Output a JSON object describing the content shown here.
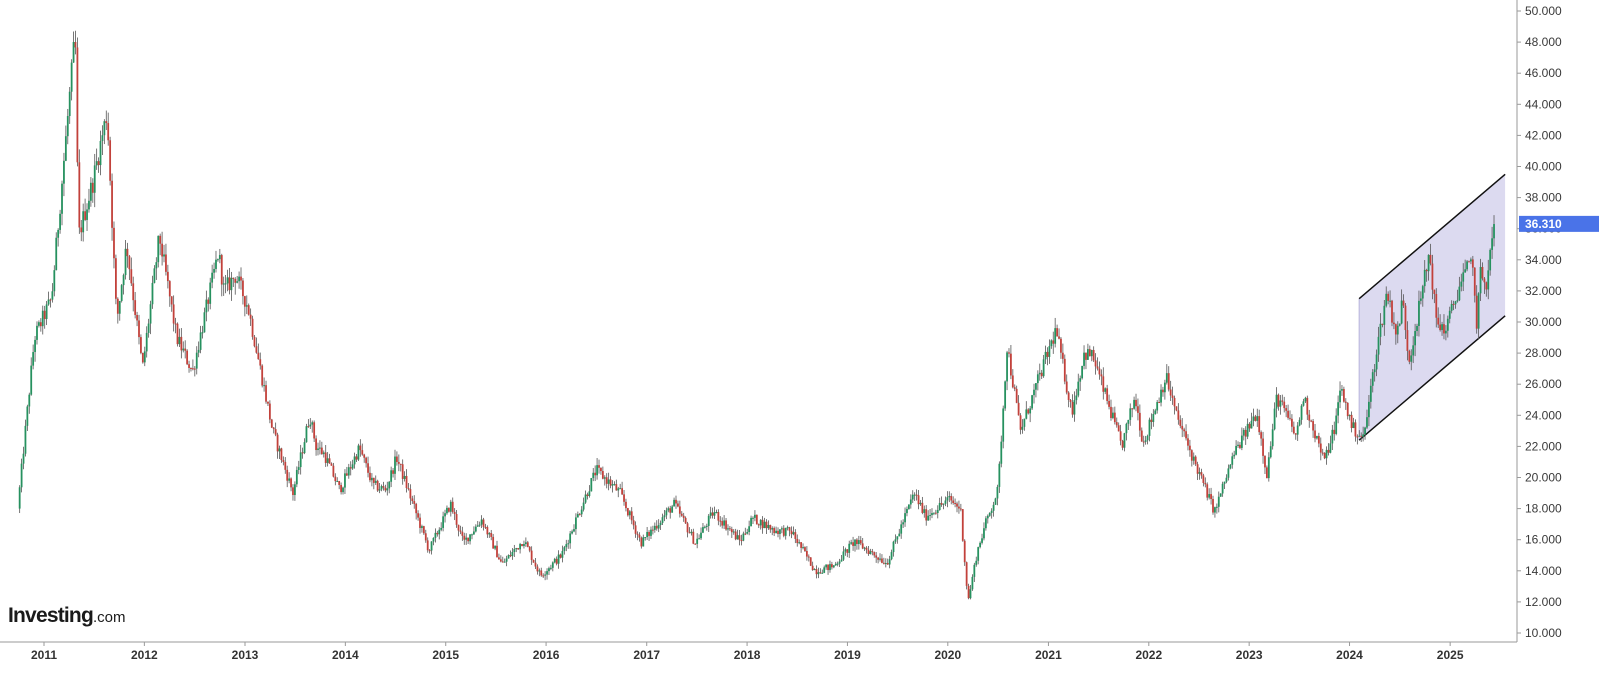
{
  "watermark": {
    "main": "Investing",
    "suffix": ".com"
  },
  "colors": {
    "up": "#26915f",
    "down": "#c2413b",
    "wick": "#555555",
    "channel_fill": "#dcdaf0",
    "channel_line": "#111111",
    "last_price_bg": "#4a73e8"
  },
  "chart_data": {
    "type": "candlestick",
    "interval": "weekly",
    "title": "",
    "xlabel": "",
    "ylabel": "",
    "ylim": [
      10,
      50
    ],
    "y_ticks": [
      "10.000",
      "12.000",
      "14.000",
      "16.000",
      "18.000",
      "20.000",
      "22.000",
      "24.000",
      "26.000",
      "28.000",
      "30.000",
      "32.000",
      "34.000",
      "36.000",
      "38.000",
      "40.000",
      "42.000",
      "44.000",
      "46.000",
      "48.000",
      "50.000"
    ],
    "x_ticks": [
      "2011",
      "2012",
      "2013",
      "2014",
      "2015",
      "2016",
      "2017",
      "2018",
      "2019",
      "2020",
      "2021",
      "2022",
      "2023",
      "2024",
      "2025"
    ],
    "last_price": "36.310",
    "price_path": [
      [
        "2010-10-01",
        18.0
      ],
      [
        "2010-12-01",
        29.0
      ],
      [
        "2011-02-01",
        31.5
      ],
      [
        "2011-04-28",
        48.5
      ],
      [
        "2011-05-10",
        35.5
      ],
      [
        "2011-07-01",
        39.0
      ],
      [
        "2011-08-22",
        43.5
      ],
      [
        "2011-09-26",
        30.0
      ],
      [
        "2011-11-01",
        35.0
      ],
      [
        "2011-12-29",
        27.0
      ],
      [
        "2012-02-28",
        35.5
      ],
      [
        "2012-05-01",
        29.0
      ],
      [
        "2012-06-28",
        26.8
      ],
      [
        "2012-09-30",
        34.5
      ],
      [
        "2012-10-20",
        32.0
      ],
      [
        "2012-12-01",
        33.0
      ],
      [
        "2013-01-15",
        31.0
      ],
      [
        "2013-04-15",
        23.0
      ],
      [
        "2013-06-28",
        19.0
      ],
      [
        "2013-08-28",
        24.0
      ],
      [
        "2013-09-20",
        22.0
      ],
      [
        "2013-10-20",
        21.5
      ],
      [
        "2013-12-15",
        19.2
      ],
      [
        "2014-02-24",
        21.9
      ],
      [
        "2014-04-15",
        19.5
      ],
      [
        "2014-06-01",
        19.2
      ],
      [
        "2014-07-10",
        21.3
      ],
      [
        "2014-11-05",
        15.3
      ],
      [
        "2015-01-22",
        18.3
      ],
      [
        "2015-03-10",
        15.8
      ],
      [
        "2015-05-15",
        17.3
      ],
      [
        "2015-07-28",
        14.4
      ],
      [
        "2015-10-15",
        16.0
      ],
      [
        "2015-12-15",
        13.7
      ],
      [
        "2016-03-01",
        15.0
      ],
      [
        "2016-07-05",
        20.5
      ],
      [
        "2016-09-30",
        19.0
      ],
      [
        "2016-12-15",
        15.8
      ],
      [
        "2017-04-15",
        18.3
      ],
      [
        "2017-06-30",
        15.8
      ],
      [
        "2017-09-05",
        17.8
      ],
      [
        "2017-12-10",
        15.9
      ],
      [
        "2018-01-25",
        17.4
      ],
      [
        "2018-04-15",
        16.6
      ],
      [
        "2018-06-15",
        16.5
      ],
      [
        "2018-09-10",
        14.0
      ],
      [
        "2018-11-15",
        14.3
      ],
      [
        "2019-01-30",
        15.9
      ],
      [
        "2019-05-28",
        14.5
      ],
      [
        "2019-09-04",
        19.0
      ],
      [
        "2019-10-15",
        17.5
      ],
      [
        "2020-01-10",
        18.6
      ],
      [
        "2020-02-20",
        18.0
      ],
      [
        "2020-03-18",
        12.0
      ],
      [
        "2020-04-20",
        15.2
      ],
      [
        "2020-05-20",
        17.0
      ],
      [
        "2020-07-05",
        19.2
      ],
      [
        "2020-08-07",
        28.5
      ],
      [
        "2020-09-25",
        23.0
      ],
      [
        "2021-02-01",
        29.5
      ],
      [
        "2021-03-30",
        24.2
      ],
      [
        "2021-05-15",
        28.0
      ],
      [
        "2021-06-15",
        27.8
      ],
      [
        "2021-09-28",
        22.0
      ],
      [
        "2021-11-15",
        25.2
      ],
      [
        "2021-12-15",
        22.2
      ],
      [
        "2022-03-08",
        26.5
      ],
      [
        "2022-04-15",
        24.0
      ],
      [
        "2022-06-15",
        21.2
      ],
      [
        "2022-09-01",
        17.8
      ],
      [
        "2022-11-10",
        21.5
      ],
      [
        "2023-02-01",
        24.2
      ],
      [
        "2023-03-10",
        20.2
      ],
      [
        "2023-04-15",
        25.2
      ],
      [
        "2023-05-15",
        24.2
      ],
      [
        "2023-06-25",
        22.6
      ],
      [
        "2023-07-20",
        25.2
      ],
      [
        "2023-10-05",
        21.0
      ],
      [
        "2023-11-15",
        23.5
      ],
      [
        "2023-12-03",
        25.8
      ],
      [
        "2024-01-15",
        23.2
      ],
      [
        "2024-02-25",
        22.5
      ],
      [
        "2024-04-10",
        28.0
      ],
      [
        "2024-05-20",
        32.0
      ],
      [
        "2024-06-25",
        29.0
      ],
      [
        "2024-07-15",
        31.5
      ],
      [
        "2024-08-08",
        27.5
      ],
      [
        "2024-10-22",
        34.5
      ],
      [
        "2024-11-15",
        30.0
      ],
      [
        "2024-12-20",
        29.5
      ],
      [
        "2025-02-10",
        32.5
      ],
      [
        "2025-03-28",
        34.0
      ],
      [
        "2025-04-09",
        29.5
      ],
      [
        "2025-04-25",
        33.0
      ],
      [
        "2025-05-20",
        32.5
      ],
      [
        "2025-06-10",
        36.3
      ]
    ],
    "channel": {
      "upper": [
        [
          "2024-02-05",
          31.5
        ],
        [
          "2025-07-20",
          39.5
        ]
      ],
      "lower": [
        [
          "2024-02-05",
          22.4
        ],
        [
          "2025-07-20",
          30.4
        ]
      ]
    }
  }
}
